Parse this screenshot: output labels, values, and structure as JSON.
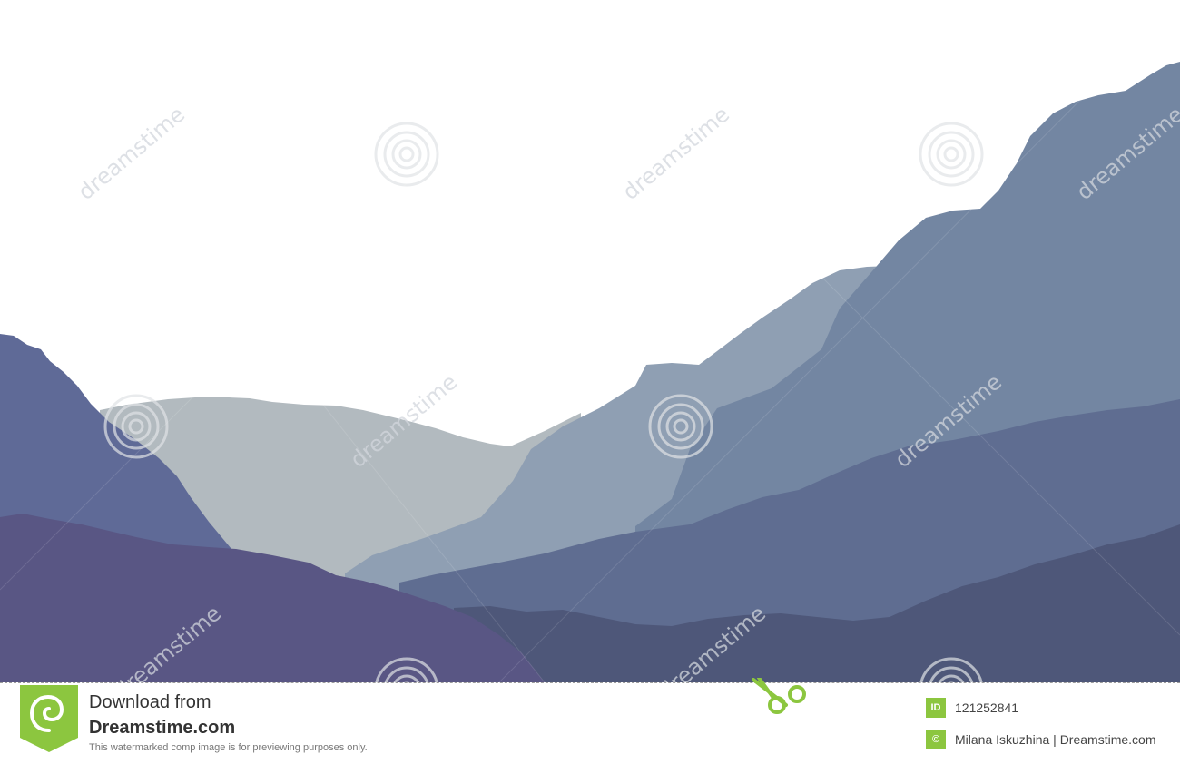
{
  "watermark": {
    "text": "dreamstime",
    "text_color": "#d2d6dc",
    "spiral_color": "#dfe2e6"
  },
  "scene": {
    "sky_color": "#ffffff",
    "layers": [
      {
        "name": "distant-grey-ridge",
        "color": "#b2babf"
      },
      {
        "name": "light-blue-slope",
        "color": "#8f9fb3"
      },
      {
        "name": "blue-mountain-right",
        "color": "#7386a2"
      },
      {
        "name": "left-cliff",
        "color": "#5f6a97"
      },
      {
        "name": "mid-blue-hills",
        "color": "#5f6d91"
      },
      {
        "name": "front-right-hills",
        "color": "#4e5779"
      },
      {
        "name": "front-left-hill",
        "color": "#595684"
      }
    ]
  },
  "footer": {
    "download_from": "Download from",
    "site": "Dreamstime.com",
    "note": "This watermarked comp image is for previewing purposes only.",
    "id_tag": "ID",
    "image_id": "121252841",
    "author_tag": "©",
    "author": "Milana Iskuzhina | Dreamstime.com",
    "accent_color": "#8cc63f"
  }
}
